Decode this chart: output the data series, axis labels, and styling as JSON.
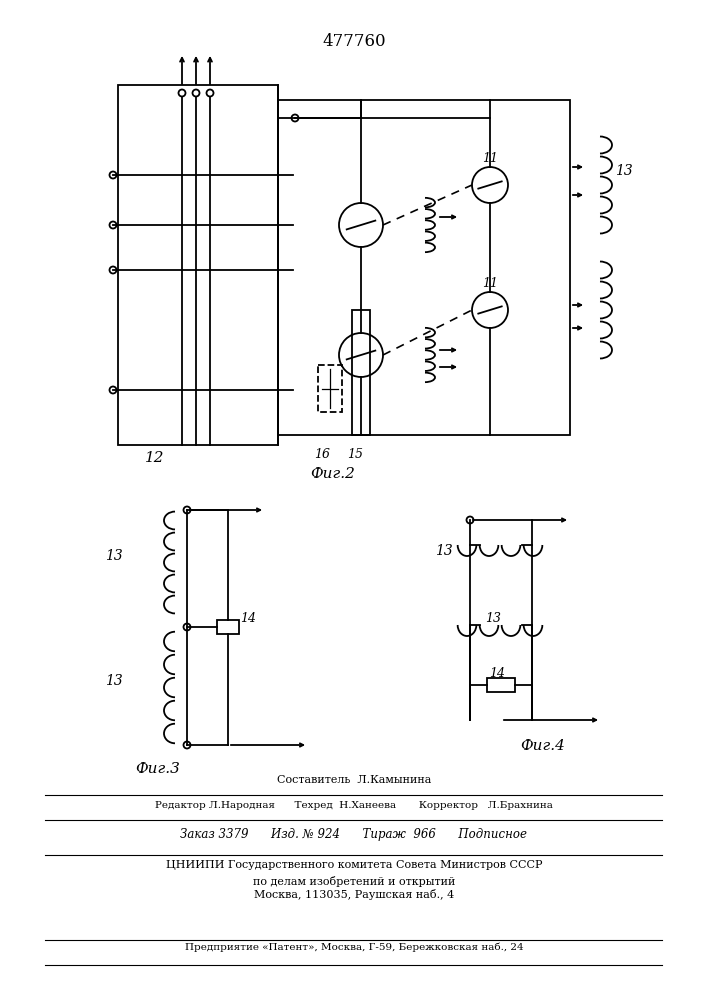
{
  "title": "477760",
  "fig2_label": "Фиг.2",
  "fig3_label": "Фиг.3",
  "fig4_label": "Фиг.4",
  "label_12": "12",
  "label_13": "13",
  "label_11": "11",
  "label_14": "14",
  "label_15": "15",
  "label_16": "16",
  "footer_line1": "Составитель  Л.Камынина",
  "footer_line2": "Редактор Л.Народная      Техред  Н.Ханеева       Корректор   Л.Брахнина",
  "footer_line3": "Заказ 3379      Изд. № 924      Тираж  966      Подписное",
  "footer_line4": "ЦНИИПИ Государственного комитета Совета Министров СССР",
  "footer_line5": "по делам изобретений и открытий",
  "footer_line6": "Москва, 113035, Раушская наб., 4",
  "footer_line7": "Предприятие «Патент», Москва, Г-59, Бережковская наб., 24"
}
